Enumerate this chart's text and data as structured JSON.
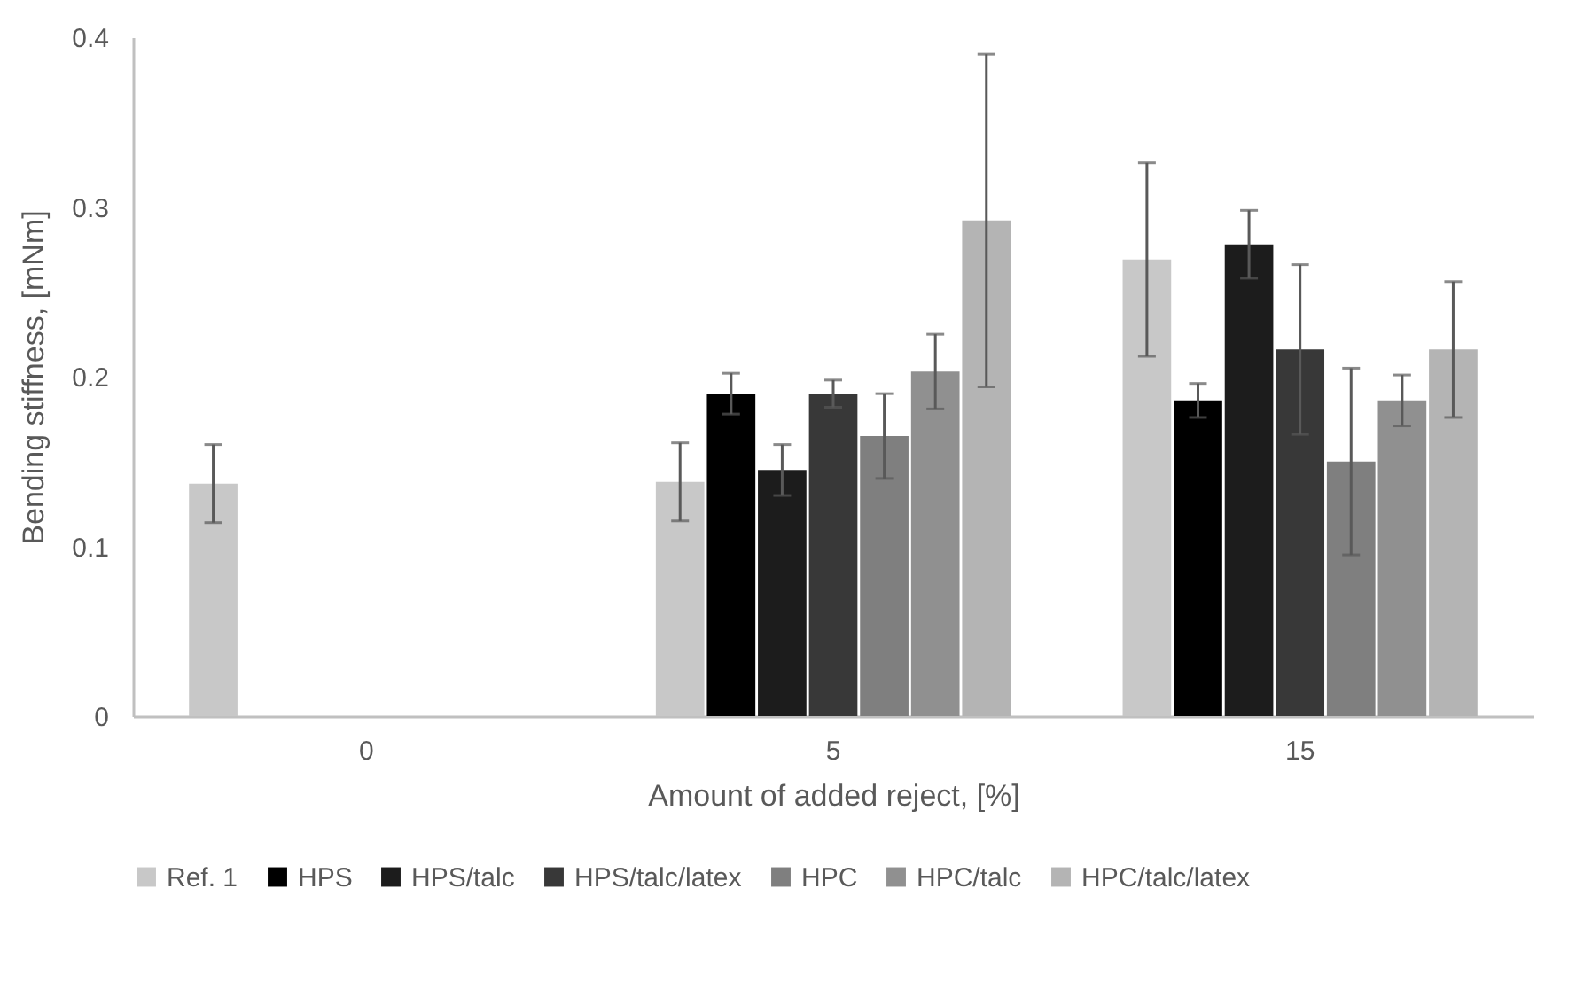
{
  "chart_data": {
    "type": "bar",
    "xlabel": "Amount of added reject, [%]",
    "ylabel": "Bending stiffness, [mNm]",
    "categories": [
      "0",
      "5",
      "15"
    ],
    "ylim": [
      0,
      0.4
    ],
    "yticks": [
      0,
      0.1,
      0.2,
      0.3,
      0.4
    ],
    "grid": false,
    "legend": "bottom",
    "series": [
      {
        "name": "Ref. 1",
        "color": "#c8c8c8",
        "values": [
          0.137,
          0.138,
          0.269
        ],
        "errors": [
          0.023,
          0.023,
          0.057
        ]
      },
      {
        "name": "HPS",
        "color": "#000000",
        "values": [
          null,
          0.19,
          0.186
        ],
        "errors": [
          null,
          0.012,
          0.01
        ]
      },
      {
        "name": "HPS/talc",
        "color": "#1c1c1c",
        "values": [
          null,
          0.145,
          0.278
        ],
        "errors": [
          null,
          0.015,
          0.02
        ]
      },
      {
        "name": "HPS/talc/latex",
        "color": "#383838",
        "values": [
          null,
          0.19,
          0.216
        ],
        "errors": [
          null,
          0.008,
          0.05
        ]
      },
      {
        "name": "HPC",
        "color": "#7f7f7f",
        "values": [
          null,
          0.165,
          0.15
        ],
        "errors": [
          null,
          0.025,
          0.055
        ]
      },
      {
        "name": "HPC/talc",
        "color": "#909090",
        "values": [
          null,
          0.203,
          0.186
        ],
        "errors": [
          null,
          0.022,
          0.015
        ]
      },
      {
        "name": "HPC/talc/latex",
        "color": "#b4b4b4",
        "values": [
          null,
          0.292,
          0.216
        ],
        "errors": [
          null,
          0.098,
          0.04
        ]
      }
    ]
  }
}
